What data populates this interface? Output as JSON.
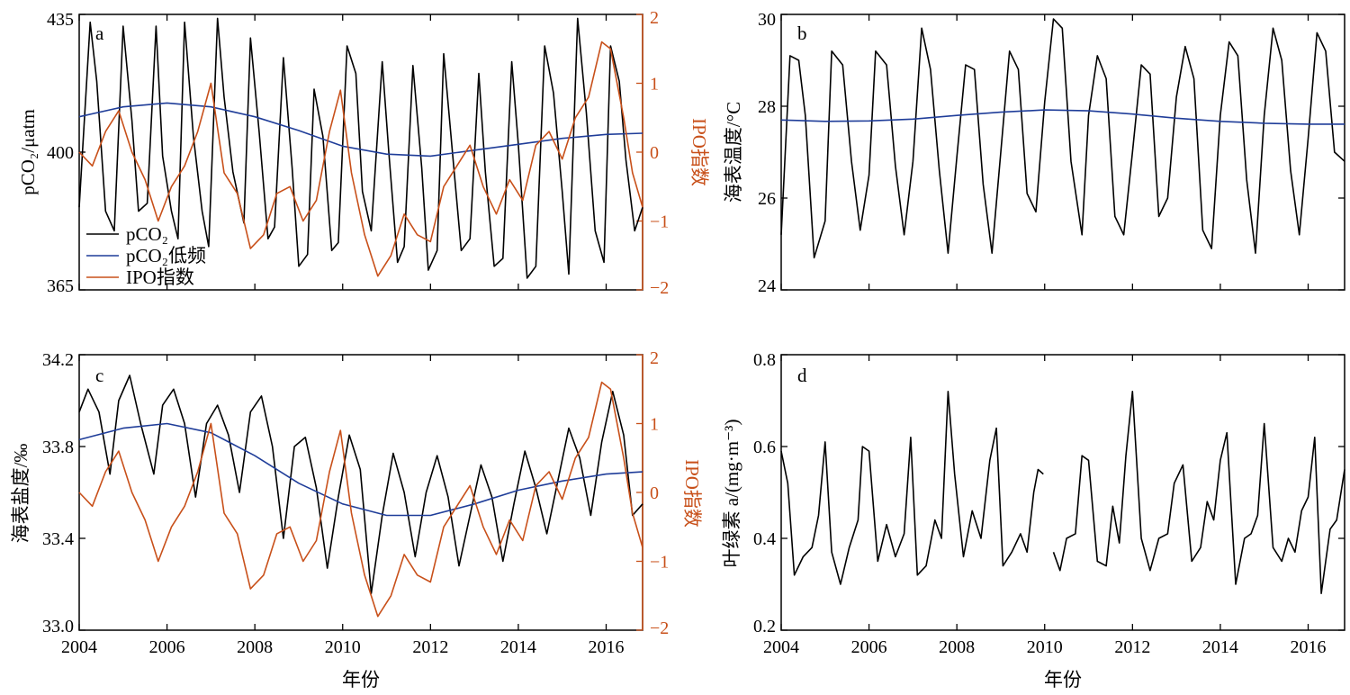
{
  "colors": {
    "pco2": "#000000",
    "lowfreq": "#1f3d99",
    "ipo": "#c8501a",
    "axis": "#000000"
  },
  "chart_data": [
    {
      "id": "a",
      "type": "line",
      "panel_label": "a",
      "xlabel": "",
      "ylabel": "pCO₂/μatm",
      "y2label": "IPO指数",
      "xlim": [
        2004,
        2016.83
      ],
      "ylim": [
        365,
        435
      ],
      "y2lim": [
        -2,
        2
      ],
      "xticks": [
        "2004",
        "2006",
        "2008",
        "2010",
        "2012",
        "2014",
        "2016"
      ],
      "yticks": [
        "365",
        "400",
        "435"
      ],
      "y2ticks": [
        "−2",
        "−1",
        "0",
        "1",
        "2"
      ],
      "legend": {
        "position": "bottom-left",
        "entries": [
          "pCO₂",
          "pCO₂低频",
          "IPO指数"
        ]
      },
      "series": [
        {
          "name": "pCO₂",
          "axis": "left",
          "color": "#000000",
          "x": [
            2004.0,
            2004.25,
            2004.4,
            2004.6,
            2004.8,
            2005.0,
            2005.2,
            2005.35,
            2005.55,
            2005.75,
            2005.9,
            2006.1,
            2006.25,
            2006.4,
            2006.6,
            2006.8,
            2006.95,
            2007.15,
            2007.3,
            2007.5,
            2007.75,
            2007.9,
            2008.1,
            2008.3,
            2008.45,
            2008.65,
            2008.85,
            2009.0,
            2009.2,
            2009.35,
            2009.55,
            2009.75,
            2009.9,
            2010.1,
            2010.3,
            2010.45,
            2010.65,
            2010.9,
            2011.05,
            2011.25,
            2011.4,
            2011.6,
            2011.8,
            2011.95,
            2012.15,
            2012.3,
            2012.5,
            2012.7,
            2012.9,
            2013.1,
            2013.25,
            2013.45,
            2013.65,
            2013.85,
            2014.0,
            2014.2,
            2014.4,
            2014.6,
            2014.8,
            2015.0,
            2015.15,
            2015.35,
            2015.55,
            2015.75,
            2015.95,
            2016.1,
            2016.3,
            2016.45,
            2016.65,
            2016.83
          ],
          "y": [
            386,
            433,
            418,
            385,
            380,
            432,
            408,
            385,
            387,
            432,
            399,
            385,
            378,
            433,
            404,
            385,
            376,
            434,
            414,
            395,
            382,
            429,
            405,
            378,
            381,
            424,
            396,
            371,
            374,
            416,
            404,
            375,
            377,
            427,
            420,
            390,
            380,
            423,
            400,
            372,
            376,
            422,
            396,
            370,
            375,
            425,
            400,
            375,
            378,
            420,
            395,
            371,
            373,
            423,
            402,
            368,
            371,
            427,
            415,
            390,
            369,
            434,
            410,
            380,
            372,
            427,
            418,
            398,
            380,
            386
          ]
        },
        {
          "name": "pCO₂低频",
          "axis": "left",
          "color": "#1f3d99",
          "x": [
            2004.0,
            2005.0,
            2006.0,
            2007.0,
            2008.0,
            2009.0,
            2010.0,
            2011.0,
            2012.0,
            2013.0,
            2014.0,
            2015.0,
            2016.0,
            2016.83
          ],
          "y": [
            409,
            411.5,
            412.5,
            411.5,
            409,
            405.5,
            401.5,
            399.5,
            399,
            400.5,
            402,
            403.5,
            404.5,
            404.8
          ]
        },
        {
          "name": "IPO指数",
          "axis": "right",
          "color": "#c8501a",
          "x": [
            2004.0,
            2004.3,
            2004.6,
            2004.9,
            2005.2,
            2005.5,
            2005.8,
            2006.1,
            2006.4,
            2006.7,
            2007.0,
            2007.3,
            2007.6,
            2007.9,
            2008.2,
            2008.5,
            2008.8,
            2009.1,
            2009.4,
            2009.7,
            2009.95,
            2010.2,
            2010.5,
            2010.8,
            2011.1,
            2011.4,
            2011.7,
            2012.0,
            2012.3,
            2012.6,
            2012.9,
            2013.2,
            2013.5,
            2013.8,
            2014.1,
            2014.4,
            2014.7,
            2015.0,
            2015.3,
            2015.6,
            2015.9,
            2016.1,
            2016.4,
            2016.6,
            2016.83
          ],
          "y": [
            0.0,
            -0.2,
            0.3,
            0.6,
            0.0,
            -0.4,
            -1.0,
            -0.5,
            -0.2,
            0.3,
            1.0,
            -0.3,
            -0.6,
            -1.4,
            -1.2,
            -0.6,
            -0.5,
            -1.0,
            -0.7,
            0.3,
            0.9,
            -0.3,
            -1.2,
            -1.8,
            -1.5,
            -0.9,
            -1.2,
            -1.3,
            -0.5,
            -0.2,
            0.1,
            -0.5,
            -0.9,
            -0.4,
            -0.7,
            0.1,
            0.3,
            -0.1,
            0.5,
            0.8,
            1.6,
            1.5,
            0.5,
            -0.3,
            -0.8
          ]
        }
      ]
    },
    {
      "id": "b",
      "type": "line",
      "panel_label": "b",
      "xlabel": "",
      "ylabel": "海表温度/°C",
      "xlim": [
        2004,
        2016.83
      ],
      "ylim": [
        24,
        30
      ],
      "xticks": [
        "2004",
        "2006",
        "2008",
        "2010",
        "2012",
        "2014",
        "2016"
      ],
      "yticks": [
        "24",
        "26",
        "28",
        "30"
      ],
      "series": [
        {
          "name": "",
          "color": "#000000",
          "x": [
            2004.0,
            2004.2,
            2004.4,
            2004.55,
            2004.75,
            2005.0,
            2005.15,
            2005.4,
            2005.6,
            2005.8,
            2006.0,
            2006.15,
            2006.4,
            2006.6,
            2006.8,
            2007.0,
            2007.2,
            2007.4,
            2007.6,
            2007.8,
            2008.0,
            2008.2,
            2008.4,
            2008.6,
            2008.8,
            2009.0,
            2009.2,
            2009.4,
            2009.6,
            2009.8,
            2010.0,
            2010.2,
            2010.4,
            2010.6,
            2010.85,
            2011.0,
            2011.2,
            2011.4,
            2011.6,
            2011.8,
            2012.0,
            2012.2,
            2012.4,
            2012.6,
            2012.8,
            2013.0,
            2013.2,
            2013.4,
            2013.6,
            2013.8,
            2014.0,
            2014.2,
            2014.4,
            2014.6,
            2014.8,
            2015.0,
            2015.2,
            2015.4,
            2015.6,
            2015.8,
            2016.0,
            2016.2,
            2016.4,
            2016.6,
            2016.83
          ],
          "y": [
            25.2,
            29.1,
            29.0,
            27.8,
            24.7,
            25.5,
            29.2,
            28.9,
            26.8,
            25.3,
            26.5,
            29.2,
            28.9,
            26.7,
            25.2,
            26.8,
            29.7,
            28.8,
            26.6,
            24.8,
            26.9,
            28.9,
            28.8,
            26.3,
            24.8,
            27.0,
            29.2,
            28.8,
            26.1,
            25.7,
            28.1,
            29.9,
            29.7,
            26.8,
            25.2,
            27.8,
            29.1,
            28.6,
            25.6,
            25.2,
            27.0,
            28.9,
            28.7,
            25.6,
            26.0,
            28.2,
            29.3,
            28.6,
            25.3,
            24.9,
            27.8,
            29.4,
            29.1,
            26.4,
            24.8,
            27.8,
            29.7,
            29.0,
            26.6,
            25.2,
            27.3,
            29.6,
            29.2,
            27.0,
            26.8
          ]
        },
        {
          "name": "",
          "color": "#1f3d99",
          "x": [
            2004.0,
            2005.0,
            2006.0,
            2007.0,
            2008.0,
            2009.0,
            2010.0,
            2011.0,
            2012.0,
            2013.0,
            2014.0,
            2015.0,
            2016.0,
            2016.83
          ],
          "y": [
            27.7,
            27.67,
            27.68,
            27.72,
            27.8,
            27.87,
            27.92,
            27.9,
            27.83,
            27.74,
            27.67,
            27.63,
            27.61,
            27.61
          ]
        }
      ]
    },
    {
      "id": "c",
      "type": "line",
      "panel_label": "c",
      "xlabel": "年份",
      "ylabel": "海表盐度/‰",
      "y2label": "IPO指数",
      "xlim": [
        2004,
        2016.83
      ],
      "ylim": [
        33.0,
        34.2
      ],
      "y2lim": [
        -2,
        2
      ],
      "xticks": [
        "2004",
        "2006",
        "2008",
        "2010",
        "2012",
        "2014",
        "2016"
      ],
      "yticks": [
        "33.0",
        "33.4",
        "33.8",
        "34.2"
      ],
      "y2ticks": [
        "−2",
        "−1",
        "0",
        "1",
        "2"
      ],
      "series": [
        {
          "name": "",
          "axis": "left",
          "color": "#000000",
          "x": [
            2004.0,
            2004.2,
            2004.45,
            2004.7,
            2004.9,
            2005.15,
            2005.4,
            2005.7,
            2005.9,
            2006.15,
            2006.4,
            2006.65,
            2006.9,
            2007.15,
            2007.4,
            2007.65,
            2007.9,
            2008.15,
            2008.4,
            2008.65,
            2008.9,
            2009.15,
            2009.4,
            2009.65,
            2009.9,
            2010.15,
            2010.4,
            2010.65,
            2010.9,
            2011.15,
            2011.4,
            2011.65,
            2011.9,
            2012.15,
            2012.4,
            2012.65,
            2012.9,
            2013.15,
            2013.4,
            2013.65,
            2013.9,
            2014.15,
            2014.4,
            2014.65,
            2014.9,
            2015.15,
            2015.4,
            2015.65,
            2015.9,
            2016.15,
            2016.4,
            2016.6,
            2016.83
          ],
          "y": [
            33.95,
            34.05,
            33.95,
            33.68,
            34.0,
            34.11,
            33.9,
            33.68,
            33.98,
            34.05,
            33.9,
            33.58,
            33.9,
            33.98,
            33.85,
            33.6,
            33.95,
            34.02,
            33.8,
            33.4,
            33.8,
            33.84,
            33.62,
            33.27,
            33.58,
            33.85,
            33.7,
            33.16,
            33.5,
            33.77,
            33.6,
            33.32,
            33.6,
            33.76,
            33.58,
            33.28,
            33.5,
            33.72,
            33.58,
            33.3,
            33.55,
            33.78,
            33.62,
            33.42,
            33.65,
            33.88,
            33.75,
            33.5,
            33.82,
            34.04,
            33.85,
            33.5,
            33.55
          ]
        },
        {
          "name": "",
          "axis": "left",
          "color": "#1f3d99",
          "x": [
            2004.0,
            2005.0,
            2006.0,
            2007.0,
            2008.0,
            2009.0,
            2010.0,
            2011.0,
            2012.0,
            2013.0,
            2014.0,
            2015.0,
            2016.0,
            2016.83
          ],
          "y": [
            33.83,
            33.88,
            33.9,
            33.86,
            33.76,
            33.64,
            33.55,
            33.5,
            33.5,
            33.55,
            33.61,
            33.65,
            33.68,
            33.69
          ]
        },
        {
          "name": "",
          "axis": "right",
          "color": "#c8501a",
          "x": [
            2004.0,
            2004.3,
            2004.6,
            2004.9,
            2005.2,
            2005.5,
            2005.8,
            2006.1,
            2006.4,
            2006.7,
            2007.0,
            2007.3,
            2007.6,
            2007.9,
            2008.2,
            2008.5,
            2008.8,
            2009.1,
            2009.4,
            2009.7,
            2009.95,
            2010.2,
            2010.5,
            2010.8,
            2011.1,
            2011.4,
            2011.7,
            2012.0,
            2012.3,
            2012.6,
            2012.9,
            2013.2,
            2013.5,
            2013.8,
            2014.1,
            2014.4,
            2014.7,
            2015.0,
            2015.3,
            2015.6,
            2015.9,
            2016.1,
            2016.4,
            2016.6,
            2016.83
          ],
          "y": [
            0.0,
            -0.2,
            0.3,
            0.6,
            0.0,
            -0.4,
            -1.0,
            -0.5,
            -0.2,
            0.3,
            1.0,
            -0.3,
            -0.6,
            -1.4,
            -1.2,
            -0.6,
            -0.5,
            -1.0,
            -0.7,
            0.3,
            0.9,
            -0.3,
            -1.2,
            -1.8,
            -1.5,
            -0.9,
            -1.2,
            -1.3,
            -0.5,
            -0.2,
            0.1,
            -0.5,
            -0.9,
            -0.4,
            -0.7,
            0.1,
            0.3,
            -0.1,
            0.5,
            0.8,
            1.6,
            1.5,
            0.5,
            -0.3,
            -0.8
          ]
        }
      ]
    },
    {
      "id": "d",
      "type": "line",
      "panel_label": "d",
      "xlabel": "年份",
      "ylabel": "叶绿素 a/(mg·m⁻³)",
      "xlim": [
        2004,
        2016.83
      ],
      "ylim": [
        0.2,
        0.8
      ],
      "xticks": [
        "2004",
        "2006",
        "2008",
        "2010",
        "2012",
        "2014",
        "2016"
      ],
      "yticks": [
        "0.2",
        "0.4",
        "0.6",
        "0.8"
      ],
      "series": [
        {
          "name": "",
          "color": "#000000",
          "x": [
            2004.0,
            2004.15,
            2004.3,
            2004.5,
            2004.7,
            2004.85,
            2005.0,
            2005.15,
            2005.35,
            2005.55,
            2005.75,
            2005.85,
            2006.0,
            2006.2,
            2006.4,
            2006.6,
            2006.8,
            2006.95,
            2007.1,
            2007.3,
            2007.5,
            2007.65,
            2007.8,
            2007.95,
            2008.15,
            2008.35,
            2008.55,
            2008.75,
            2008.9,
            2009.05,
            2009.25,
            2009.45,
            2009.6,
            2009.75,
            2009.85,
            2009.97
          ],
          "y": [
            0.59,
            0.52,
            0.32,
            0.36,
            0.38,
            0.45,
            0.61,
            0.37,
            0.3,
            0.38,
            0.44,
            0.6,
            0.59,
            0.35,
            0.43,
            0.36,
            0.41,
            0.62,
            0.32,
            0.34,
            0.44,
            0.4,
            0.72,
            0.54,
            0.36,
            0.46,
            0.4,
            0.57,
            0.64,
            0.34,
            0.37,
            0.41,
            0.37,
            0.5,
            0.55,
            0.54
          ]
        },
        {
          "name": "",
          "color": "#000000",
          "x": [
            2010.2,
            2010.35,
            2010.5,
            2010.7,
            2010.85,
            2011.0,
            2011.2,
            2011.4,
            2011.55,
            2011.7,
            2011.85,
            2012.0,
            2012.2,
            2012.4,
            2012.6,
            2012.8,
            2012.95,
            2013.15,
            2013.35,
            2013.55,
            2013.7,
            2013.85,
            2014.0,
            2014.15,
            2014.35,
            2014.55,
            2014.7,
            2014.85,
            2015.0,
            2015.2,
            2015.4,
            2015.55,
            2015.7,
            2015.85,
            2016.0,
            2016.15,
            2016.3,
            2016.5,
            2016.65,
            2016.83
          ],
          "y": [
            0.37,
            0.33,
            0.4,
            0.41,
            0.58,
            0.57,
            0.35,
            0.34,
            0.47,
            0.39,
            0.58,
            0.72,
            0.4,
            0.33,
            0.4,
            0.41,
            0.52,
            0.56,
            0.35,
            0.38,
            0.48,
            0.44,
            0.57,
            0.63,
            0.3,
            0.4,
            0.41,
            0.45,
            0.65,
            0.38,
            0.35,
            0.4,
            0.37,
            0.46,
            0.49,
            0.62,
            0.28,
            0.42,
            0.44,
            0.55
          ]
        }
      ]
    }
  ]
}
